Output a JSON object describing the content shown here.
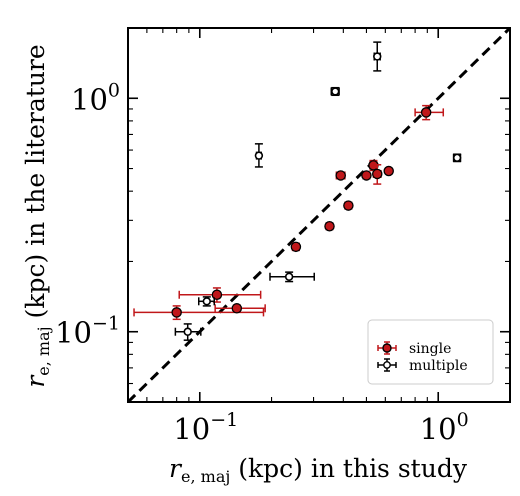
{
  "chart_data": {
    "type": "scatter",
    "title": "",
    "xlabel": {
      "symbol": "r",
      "subscript": "e, maj",
      "text": "(kpc) in this study"
    },
    "ylabel": {
      "symbol": "r",
      "subscript": "e, maj",
      "text": "(kpc) in the literature"
    },
    "xscale": "log",
    "yscale": "log",
    "xlim": [
      0.05,
      2.0
    ],
    "ylim": [
      0.05,
      2.0
    ],
    "x_tick_labels": [
      {
        "value": 0.1,
        "base": "10",
        "exp": "−1"
      },
      {
        "value": 1.0,
        "base": "10",
        "exp": "0"
      }
    ],
    "y_tick_labels": [
      {
        "value": 0.1,
        "base": "10",
        "exp": "−1"
      },
      {
        "value": 1.0,
        "base": "10",
        "exp": "0"
      }
    ],
    "reference_line": {
      "type": "one-to-one",
      "style": "dashed",
      "color": "#000000"
    },
    "legend": {
      "placement": "lower-right",
      "entries": [
        {
          "label": "single",
          "series": "single"
        },
        {
          "label": "multiple",
          "series": "multiple"
        }
      ]
    },
    "series": [
      {
        "name": "single",
        "marker": "filled-circle",
        "face_color": "#c0171a",
        "edge_color": "#000000",
        "errorbar_color": "#c0171a",
        "points": [
          {
            "x": 0.08,
            "y": 0.121,
            "xerr": [
              0.027,
              0.105
            ],
            "yerr": [
              0.008,
              0.008
            ]
          },
          {
            "x": 0.118,
            "y": 0.144,
            "xerr": [
              0.036,
              0.062
            ],
            "yerr": [
              0.01,
              0.01
            ]
          },
          {
            "x": 0.143,
            "y": 0.126,
            "xerr": [
              0.027,
              0.045
            ],
            "yerr": [
              0.004,
              0.004
            ]
          },
          {
            "x": 0.253,
            "y": 0.231,
            "xerr": [
              0.008,
              0.008
            ],
            "yerr": [
              0.008,
              0.008
            ]
          },
          {
            "x": 0.35,
            "y": 0.283,
            "xerr": [
              0.011,
              0.011
            ],
            "yerr": [
              0.008,
              0.008
            ]
          },
          {
            "x": 0.39,
            "y": 0.467,
            "xerr": [
              0.016,
              0.016
            ],
            "yerr": [
              0.015,
              0.015
            ]
          },
          {
            "x": 0.42,
            "y": 0.347,
            "xerr": [
              0.013,
              0.013
            ],
            "yerr": [
              0.011,
              0.011
            ]
          },
          {
            "x": 0.5,
            "y": 0.467,
            "xerr": [
              0.014,
              0.014
            ],
            "yerr": [
              0.015,
              0.015
            ]
          },
          {
            "x": 0.535,
            "y": 0.516,
            "xerr": [
              0.018,
              0.018
            ],
            "yerr": [
              0.025,
              0.025
            ]
          },
          {
            "x": 0.555,
            "y": 0.474,
            "xerr": [
              0.02,
              0.02
            ],
            "yerr": [
              0.045,
              0.045
            ]
          },
          {
            "x": 0.62,
            "y": 0.488,
            "xerr": [
              0.014,
              0.014
            ],
            "yerr": [
              0.012,
              0.012
            ]
          },
          {
            "x": 0.89,
            "y": 0.87,
            "xerr": [
              0.09,
              0.16
            ],
            "yerr": [
              0.06,
              0.06
            ]
          }
        ]
      },
      {
        "name": "multiple",
        "marker": "open-circle",
        "face_color": "none",
        "edge_color": "#000000",
        "errorbar_color": "#000000",
        "points": [
          {
            "x": 0.089,
            "y": 0.1,
            "xerr": [
              0.01,
              0.012
            ],
            "yerr": [
              0.008,
              0.008
            ]
          },
          {
            "x": 0.107,
            "y": 0.135,
            "xerr": [
              0.008,
              0.008
            ],
            "yerr": [
              0.006,
              0.006
            ]
          },
          {
            "x": 0.177,
            "y": 0.568,
            "xerr": [
              0.004,
              0.004
            ],
            "yerr": [
              0.06,
              0.07
            ]
          },
          {
            "x": 0.237,
            "y": 0.172,
            "xerr": [
              0.04,
              0.065
            ],
            "yerr": [
              0.008,
              0.008
            ]
          },
          {
            "x": 0.37,
            "y": 1.07,
            "xerr": [
              0.014,
              0.014
            ],
            "yerr": [
              0.04,
              0.04
            ]
          },
          {
            "x": 0.555,
            "y": 1.51,
            "xerr": [
              0.016,
              0.016
            ],
            "yerr": [
              0.2,
              0.23
            ]
          },
          {
            "x": 1.2,
            "y": 0.556,
            "xerr": [
              0.04,
              0.04
            ],
            "yerr": [
              0.02,
              0.02
            ]
          }
        ]
      }
    ]
  }
}
